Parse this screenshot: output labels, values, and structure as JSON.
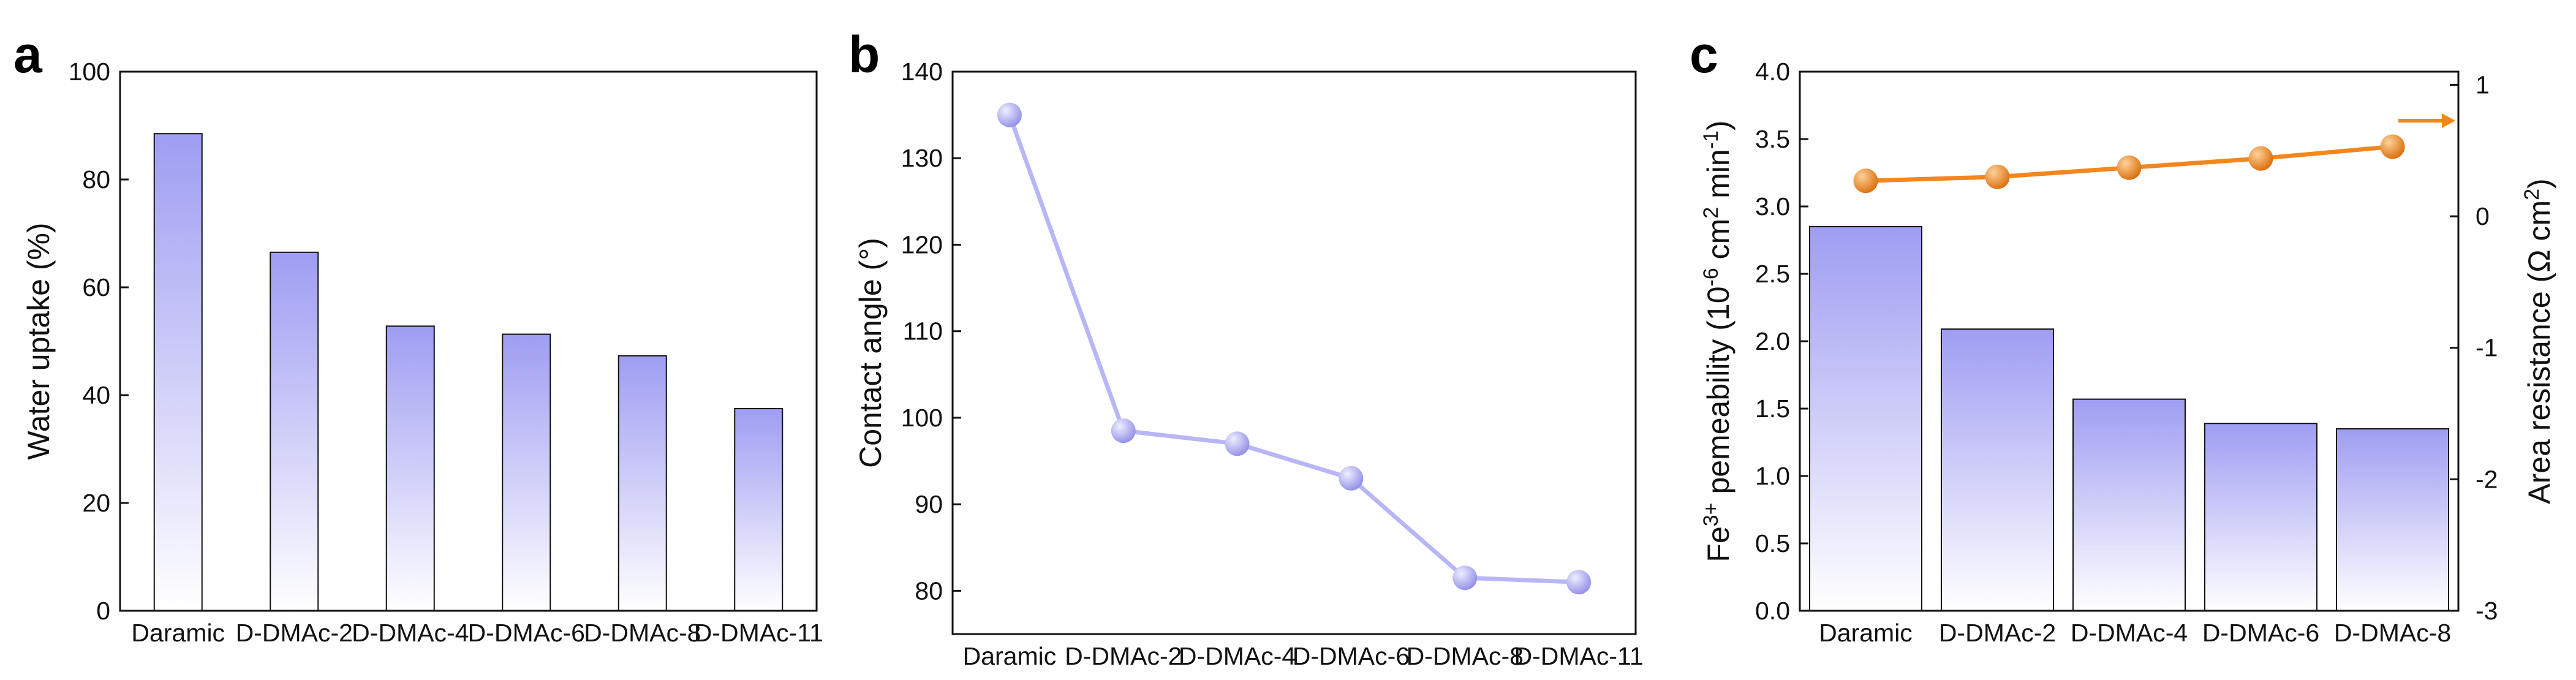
{
  "colors": {
    "bar_top": "#9f9df2",
    "bar_bottom": "#ffffff",
    "line": "#b8b6f6",
    "marker_light": "#eeeeff",
    "marker_dark": "#8e8ce6",
    "orange": "#f4861c",
    "orange_dark": "#d96a05",
    "orange_light": "#ffd29a",
    "axis": "#111111"
  },
  "chart_data": [
    {
      "panel": "a",
      "type": "bar",
      "categories": [
        "Daramic",
        "D-DMAc-2",
        "D-DMAc-4",
        "D-DMAc-6",
        "D-DMAc-8",
        "D-DMAc-11"
      ],
      "values": [
        88.5,
        66.5,
        52.8,
        51.3,
        47.3,
        37.5
      ],
      "xlabel": "",
      "ylabel": "Water uptake (%)",
      "ylim": [
        0,
        100
      ],
      "yticks": [
        "0",
        "20",
        "40",
        "60",
        "80",
        "100"
      ],
      "grid": false
    },
    {
      "panel": "b",
      "type": "line",
      "categories": [
        "Daramic",
        "D-DMAc-2",
        "D-DMAc-4",
        "D-DMAc-6",
        "D-DMAc-8",
        "D-DMAc-11"
      ],
      "values": [
        135,
        98.5,
        97,
        93,
        81.5,
        81
      ],
      "xlabel": "",
      "ylabel": "Contact angle (°)",
      "ylim": [
        75,
        140
      ],
      "yticks": [
        "80",
        "90",
        "100",
        "110",
        "120",
        "130",
        "140"
      ],
      "grid": false
    },
    {
      "panel": "c",
      "type": "bar",
      "categories": [
        "Daramic",
        "D-DMAc-2",
        "D-DMAc-4",
        "D-DMAc-6",
        "D-DMAc-8"
      ],
      "values": [
        2.85,
        2.09,
        1.57,
        1.39,
        1.35
      ],
      "ylabel_parts": {
        "pre": "Fe",
        "sup": "3+",
        "mid": " pemeability (10",
        "exp": "-6",
        "unit_a": " cm",
        "exp2": "2",
        "unit_b": " min",
        "exp3": "-1",
        "post": ")"
      },
      "ylim": [
        0,
        4.0
      ],
      "yticks": [
        "0.0",
        "0.5",
        "1.0",
        "1.5",
        "2.0",
        "2.5",
        "3.0",
        "3.5",
        "4.0"
      ],
      "secondary": {
        "type": "line",
        "values": [
          0.27,
          0.3,
          0.37,
          0.44,
          0.53
        ],
        "ylabel_parts": {
          "pre": "Area resistance (Ω cm",
          "sup": "2",
          "post": ")"
        },
        "ylim": [
          -3,
          1.1
        ],
        "yticks": [
          "-3",
          "-2",
          "-1",
          "0",
          "1"
        ]
      },
      "grid": false
    }
  ]
}
